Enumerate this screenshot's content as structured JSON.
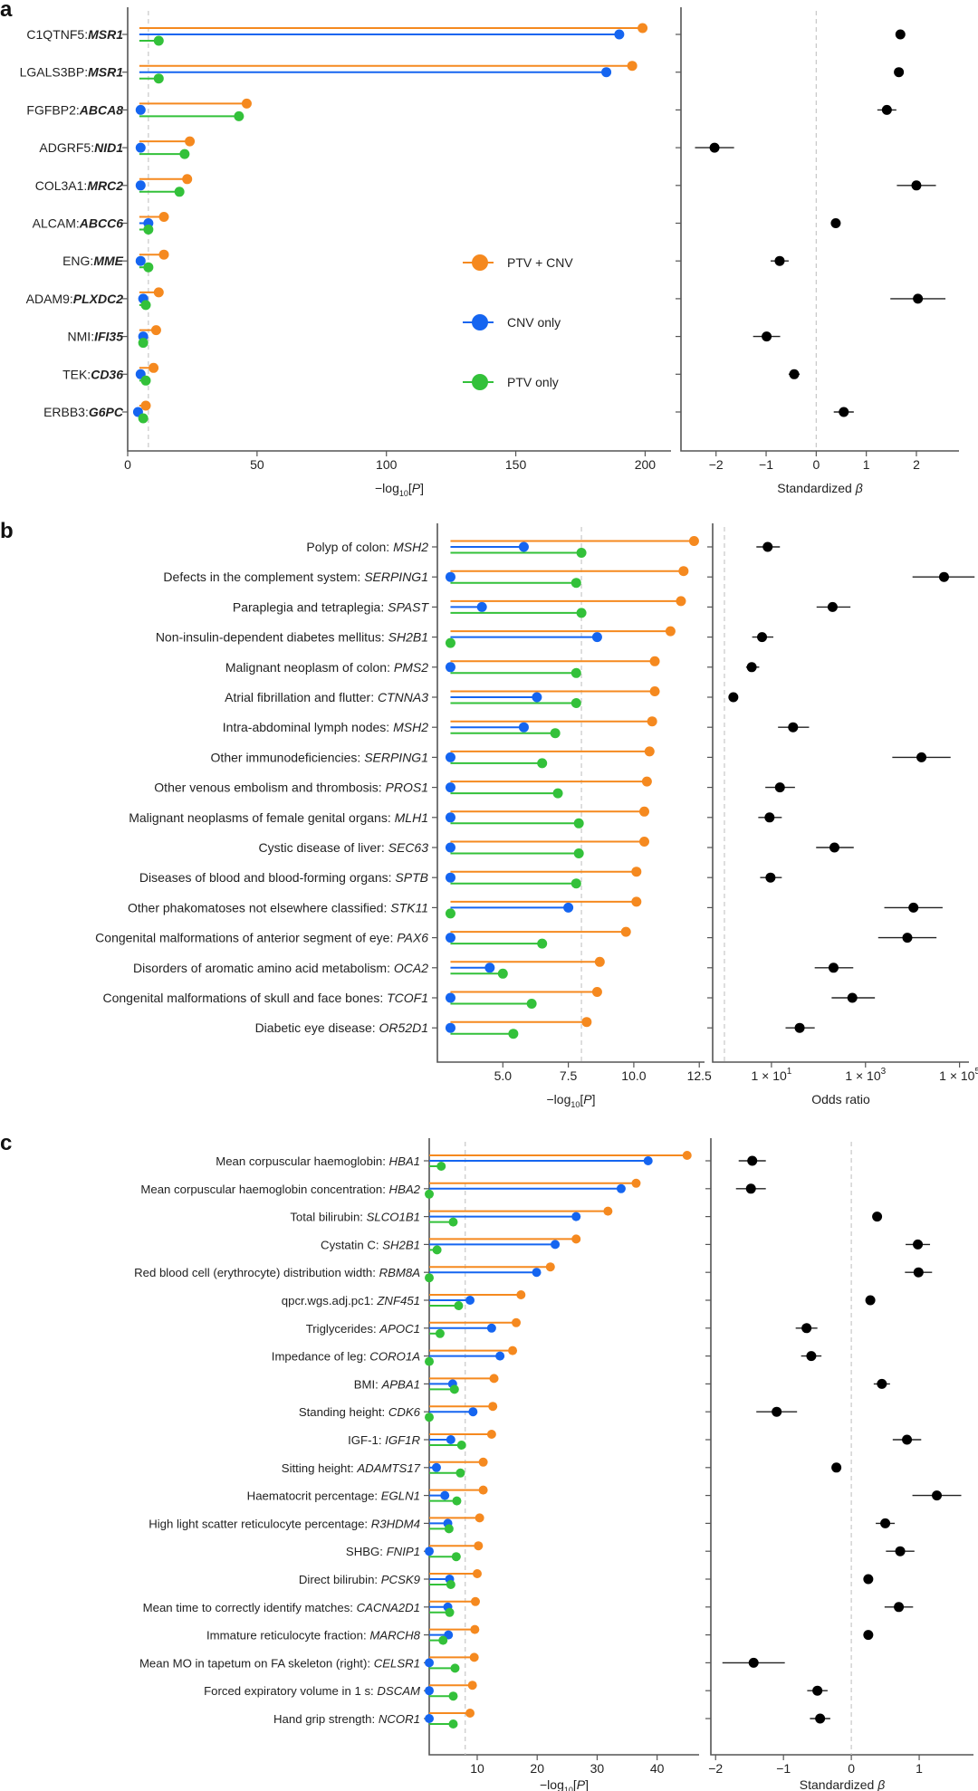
{
  "colors": {
    "ptv_cnv": "#f5891f",
    "cnv_only": "#1565f0",
    "ptv_only": "#33c13a",
    "point": "#000000"
  },
  "legend": [
    {
      "key": "ptv_cnv",
      "label": "PTV + CNV"
    },
    {
      "key": "cnv_only",
      "label": "CNV only"
    },
    {
      "key": "ptv_only",
      "label": "PTV only"
    }
  ],
  "chart_data": [
    {
      "panel": "a",
      "type": "lollipop+forest",
      "left": {
        "xlabel": "−log10[P]",
        "xlim": [
          0,
          210
        ],
        "xticks": [
          0,
          50,
          100,
          150,
          200
        ],
        "threshold": 8,
        "series": [
          "ptv_cnv",
          "cnv_only",
          "ptv_only"
        ]
      },
      "right": {
        "xlabel": "Standardized β",
        "xlim": [
          -2.7,
          2.85
        ],
        "xticks": [
          -2,
          -1,
          0,
          1,
          2
        ],
        "xtick_labels": [
          "−2",
          "−1",
          "0",
          "1",
          "2"
        ],
        "ref": 0,
        "scale": "linear"
      },
      "rows": [
        {
          "prefix": "C1QTNF5:",
          "gene": "MSR1",
          "p": [
            199,
            190,
            12
          ],
          "beta": 1.68,
          "ci": [
            1.6,
            1.76
          ]
        },
        {
          "prefix": "LGALS3BP:",
          "gene": "MSR1",
          "p": [
            195,
            185,
            12
          ],
          "beta": 1.65,
          "ci": [
            1.57,
            1.73
          ]
        },
        {
          "prefix": "FGFBP2:",
          "gene": "ABCA8",
          "p": [
            46,
            5,
            43
          ],
          "beta": 1.41,
          "ci": [
            1.22,
            1.6
          ]
        },
        {
          "prefix": "ADGRF5:",
          "gene": "NID1",
          "p": [
            24,
            5,
            22
          ],
          "beta": -2.03,
          "ci": [
            -2.42,
            -1.64
          ]
        },
        {
          "prefix": "COL3A1:",
          "gene": "MRC2",
          "p": [
            23,
            5,
            20
          ],
          "beta": 2.0,
          "ci": [
            1.61,
            2.39
          ]
        },
        {
          "prefix": "ALCAM:",
          "gene": "ABCC6",
          "p": [
            14,
            8,
            8
          ],
          "beta": 0.39,
          "ci": [
            0.33,
            0.45
          ]
        },
        {
          "prefix": "ENG:",
          "gene": "MME",
          "p": [
            14,
            5,
            8
          ],
          "beta": -0.73,
          "ci": [
            -0.91,
            -0.55
          ]
        },
        {
          "prefix": "ADAM9:",
          "gene": "PLXDC2",
          "p": [
            12,
            6,
            7
          ],
          "beta": 2.03,
          "ci": [
            1.48,
            2.58
          ]
        },
        {
          "prefix": "NMI:",
          "gene": "IFI35",
          "p": [
            11,
            6,
            6
          ],
          "beta": -0.99,
          "ci": [
            -1.26,
            -0.72
          ]
        },
        {
          "prefix": "TEK:",
          "gene": "CD36",
          "p": [
            10,
            5,
            7
          ],
          "beta": -0.44,
          "ci": [
            -0.55,
            -0.33
          ]
        },
        {
          "prefix": "ERBB3:",
          "gene": "G6PC",
          "p": [
            7,
            4,
            6
          ],
          "beta": 0.55,
          "ci": [
            0.35,
            0.75
          ]
        }
      ]
    },
    {
      "panel": "b",
      "type": "lollipop+forest",
      "left": {
        "xlabel": "−log10[P]",
        "xlim": [
          2.5,
          12.7
        ],
        "xticks": [
          5.0,
          7.5,
          10.0,
          12.5
        ],
        "xtick_labels": [
          "5.0",
          "7.5",
          "10.0",
          "12.5"
        ],
        "threshold": 8,
        "baseline": 3
      },
      "right": {
        "xlabel": "Odds ratio",
        "scale": "log10",
        "xlim_log10": [
          -0.25,
          5.2
        ],
        "xticks_log10": [
          1,
          3,
          5
        ],
        "xtick_labels": [
          "1 × 10^1",
          "1 × 10^3",
          "1 × 10^5"
        ],
        "ref_log10": 0
      },
      "rows": [
        {
          "prefix": "Polyp of colon: ",
          "gene": "MSH2",
          "p": [
            12.3,
            5.8,
            8.0
          ],
          "or_log10": 0.92,
          "ci": [
            0.68,
            1.18
          ]
        },
        {
          "prefix": "Defects in the complement system: ",
          "gene": "SERPING1",
          "p": [
            11.9,
            3.0,
            7.8
          ],
          "or_log10": 4.67,
          "ci": [
            4.0,
            5.32
          ]
        },
        {
          "prefix": "Paraplegia and tetraplegia: ",
          "gene": "SPAST",
          "p": [
            11.8,
            4.2,
            8.0
          ],
          "or_log10": 2.3,
          "ci": [
            1.96,
            2.68
          ]
        },
        {
          "prefix": "Non-insulin-dependent diabetes mellitus: ",
          "gene": "SH2B1",
          "p": [
            11.4,
            8.6,
            3.0
          ],
          "or_log10": 0.8,
          "ci": [
            0.59,
            1.04
          ]
        },
        {
          "prefix": "Malignant neoplasm of colon: ",
          "gene": "PMS2",
          "p": [
            10.8,
            3.0,
            7.8
          ],
          "or_log10": 0.58,
          "ci": [
            0.46,
            0.74
          ]
        },
        {
          "prefix": "Atrial fibrillation and flutter: ",
          "gene": "CTNNA3",
          "p": [
            10.8,
            6.3,
            7.8
          ],
          "or_log10": 0.19,
          "ci": [
            0.15,
            0.23
          ]
        },
        {
          "prefix": "Intra-abdominal lymph nodes: ",
          "gene": "MSH2",
          "p": [
            10.7,
            5.8,
            7.0
          ],
          "or_log10": 1.46,
          "ci": [
            1.14,
            1.8
          ]
        },
        {
          "prefix": "Other immunodeficiencies: ",
          "gene": "SERPING1",
          "p": [
            10.6,
            3.0,
            6.5
          ],
          "or_log10": 4.19,
          "ci": [
            3.57,
            4.81
          ]
        },
        {
          "prefix": "Other venous embolism and thrombosis: ",
          "gene": "PROS1",
          "p": [
            10.5,
            3.0,
            7.1
          ],
          "or_log10": 1.18,
          "ci": [
            0.87,
            1.5
          ]
        },
        {
          "prefix": "Malignant neoplasms of female genital organs: ",
          "gene": "MLH1",
          "p": [
            10.4,
            3.0,
            7.9
          ],
          "or_log10": 0.96,
          "ci": [
            0.72,
            1.22
          ]
        },
        {
          "prefix": "Cystic disease of liver: ",
          "gene": "SEC63",
          "p": [
            10.4,
            3.0,
            7.9
          ],
          "or_log10": 2.34,
          "ci": [
            1.95,
            2.75
          ]
        },
        {
          "prefix": "Diseases of blood and blood-forming organs: ",
          "gene": "SPTB",
          "p": [
            10.1,
            3.0,
            7.8
          ],
          "or_log10": 0.98,
          "ci": [
            0.76,
            1.22
          ]
        },
        {
          "prefix": "Other phakomatoses not elsewhere classified: ",
          "gene": "STK11",
          "p": [
            10.1,
            7.5,
            3.0
          ],
          "or_log10": 4.02,
          "ci": [
            3.4,
            4.64
          ]
        },
        {
          "prefix": "Congenital malformations of anterior segment of eye: ",
          "gene": "PAX6",
          "p": [
            9.7,
            3.0,
            6.5
          ],
          "or_log10": 3.89,
          "ci": [
            3.27,
            4.51
          ]
        },
        {
          "prefix": "Disorders of aromatic amino acid metabolism: ",
          "gene": "OCA2",
          "p": [
            8.7,
            4.5,
            5.0
          ],
          "or_log10": 2.32,
          "ci": [
            1.92,
            2.74
          ]
        },
        {
          "prefix": "Congenital malformations of skull and face bones: ",
          "gene": "TCOF1",
          "p": [
            8.6,
            3.0,
            6.1
          ],
          "or_log10": 2.72,
          "ci": [
            2.28,
            3.2
          ]
        },
        {
          "prefix": "Diabetic eye disease: ",
          "gene": "OR52D1",
          "p": [
            8.2,
            3.0,
            5.4
          ],
          "or_log10": 1.6,
          "ci": [
            1.3,
            1.92
          ]
        }
      ]
    },
    {
      "panel": "c",
      "type": "lollipop+forest",
      "left": {
        "xlabel": "−log10[P]",
        "xlim": [
          2,
          47
        ],
        "xticks": [
          10,
          20,
          30,
          40
        ],
        "threshold": 8,
        "baseline": 2
      },
      "right": {
        "xlabel": "Standardized β",
        "xlim": [
          -2.07,
          1.8
        ],
        "xticks": [
          -2,
          -1,
          0,
          1
        ],
        "xtick_labels": [
          "−2",
          "−1",
          "0",
          "1"
        ],
        "ref": 0,
        "scale": "linear"
      },
      "rows": [
        {
          "prefix": "Mean corpuscular haemoglobin: ",
          "gene": "HBA1",
          "p": [
            45,
            38.5,
            4
          ],
          "beta": -1.46,
          "ci": [
            -1.66,
            -1.26
          ]
        },
        {
          "prefix": "Mean corpuscular haemoglobin concentration: ",
          "gene": "HBA2",
          "p": [
            36.5,
            34,
            2
          ],
          "beta": -1.48,
          "ci": [
            -1.7,
            -1.26
          ]
        },
        {
          "prefix": "Total bilirubin: ",
          "gene": "SLCO1B1",
          "p": [
            31.8,
            26.5,
            6
          ],
          "beta": 0.38,
          "ci": [
            0.32,
            0.44
          ]
        },
        {
          "prefix": "Cystatin C: ",
          "gene": "SH2B1",
          "p": [
            26.5,
            23,
            3.3
          ],
          "beta": 0.98,
          "ci": [
            0.8,
            1.16
          ]
        },
        {
          "prefix": "Red blood cell (erythrocyte) distribution width: ",
          "gene": "RBM8A",
          "p": [
            22.2,
            19.9,
            2
          ],
          "beta": 0.99,
          "ci": [
            0.79,
            1.19
          ]
        },
        {
          "prefix": "qpcr.wgs.adj.pc1: ",
          "gene": "ZNF451",
          "p": [
            17.3,
            8.8,
            6.9
          ],
          "beta": 0.28,
          "ci": [
            0.22,
            0.34
          ]
        },
        {
          "prefix": "Triglycerides: ",
          "gene": "APOC1",
          "p": [
            16.5,
            12.4,
            3.8
          ],
          "beta": -0.66,
          "ci": [
            -0.82,
            -0.5
          ]
        },
        {
          "prefix": "Impedance of leg: ",
          "gene": "CORO1A",
          "p": [
            15.9,
            13.8,
            2
          ],
          "beta": -0.59,
          "ci": [
            -0.74,
            -0.44
          ]
        },
        {
          "prefix": "BMI: ",
          "gene": "APBA1",
          "p": [
            12.8,
            5.9,
            6.2
          ],
          "beta": 0.45,
          "ci": [
            0.33,
            0.57
          ]
        },
        {
          "prefix": "Standing height: ",
          "gene": "CDK6",
          "p": [
            12.6,
            9.3,
            2
          ],
          "beta": -1.1,
          "ci": [
            -1.4,
            -0.8
          ]
        },
        {
          "prefix": "IGF-1: ",
          "gene": "IGF1R",
          "p": [
            12.4,
            5.6,
            7.4
          ],
          "beta": 0.82,
          "ci": [
            0.61,
            1.03
          ]
        },
        {
          "prefix": "Sitting height: ",
          "gene": "ADAMTS17",
          "p": [
            11.0,
            3.2,
            7.2
          ],
          "beta": -0.22,
          "ci": [
            -0.28,
            -0.16
          ]
        },
        {
          "prefix": "Haematocrit percentage: ",
          "gene": "EGLN1",
          "p": [
            11.0,
            4.6,
            6.6
          ],
          "beta": 1.26,
          "ci": [
            0.9,
            1.62
          ]
        },
        {
          "prefix": "High light scatter reticulocyte percentage: ",
          "gene": "R3HDM4",
          "p": [
            10.4,
            5.1,
            5.3
          ],
          "beta": 0.5,
          "ci": [
            0.36,
            0.64
          ]
        },
        {
          "prefix": "SHBG: ",
          "gene": "FNIP1",
          "p": [
            10.2,
            2,
            6.5
          ],
          "beta": 0.72,
          "ci": [
            0.51,
            0.93
          ]
        },
        {
          "prefix": "Direct bilirubin: ",
          "gene": "PCSK9",
          "p": [
            10.0,
            5.4,
            5.6
          ],
          "beta": 0.25,
          "ci": [
            0.2,
            0.3
          ]
        },
        {
          "prefix": "Mean time to correctly identify matches: ",
          "gene": "CACNA2D1",
          "p": [
            9.7,
            5.1,
            5.4
          ],
          "beta": 0.7,
          "ci": [
            0.49,
            0.91
          ]
        },
        {
          "prefix": "Immature reticulocyte fraction: ",
          "gene": "MARCH8",
          "p": [
            9.6,
            5.2,
            4.3
          ],
          "beta": 0.25,
          "ci": [
            0.2,
            0.3
          ]
        },
        {
          "prefix": "Mean MO in tapetum on FA skeleton (right): ",
          "gene": "CELSR1",
          "p": [
            9.5,
            2,
            6.3
          ],
          "beta": -1.44,
          "ci": [
            -1.9,
            -0.98
          ]
        },
        {
          "prefix": "Forced expiratory volume in 1 s: ",
          "gene": "DSCAM",
          "p": [
            9.2,
            2,
            6
          ],
          "beta": -0.5,
          "ci": [
            -0.65,
            -0.35
          ]
        },
        {
          "prefix": "Hand grip strength: ",
          "gene": "NCOR1",
          "p": [
            8.8,
            2,
            6
          ],
          "beta": -0.46,
          "ci": [
            -0.61,
            -0.31
          ]
        }
      ]
    }
  ]
}
